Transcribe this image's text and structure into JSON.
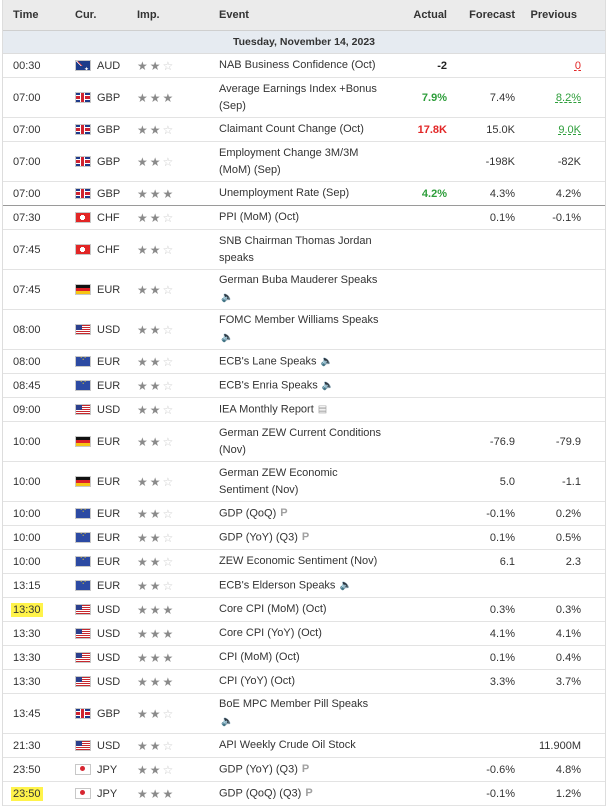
{
  "header": {
    "time": "Time",
    "currency": "Cur.",
    "importance": "Imp.",
    "event": "Event",
    "actual": "Actual",
    "forecast": "Forecast",
    "previous": "Previous"
  },
  "date_band": "Tuesday, November 14, 2023",
  "colors": {
    "positive": "#2e9e3b",
    "negative": "#e22626",
    "highlight": "#fff34a",
    "star_on": "#8b8b8b",
    "star_off": "#c9c9c9"
  },
  "rows": [
    {
      "time": "00:30",
      "cur": "AUD",
      "flag": "AUD",
      "imp": 2,
      "event": "NAB Business Confidence (Oct)",
      "icon": "",
      "actual": "-2",
      "actual_color": "black",
      "forecast": "",
      "previous": "0",
      "prev_color": "red",
      "h": 24
    },
    {
      "time": "07:00",
      "cur": "GBP",
      "flag": "GBP",
      "imp": 3,
      "event": "Average Earnings Index +Bonus (Sep)",
      "icon": "",
      "actual": "7.9%",
      "actual_color": "green",
      "forecast": "7.4%",
      "previous": "8.2%",
      "prev_color": "green",
      "h": 40
    },
    {
      "time": "07:00",
      "cur": "GBP",
      "flag": "GBP",
      "imp": 2,
      "event": "Claimant Count Change (Oct)",
      "icon": "",
      "actual": "17.8K",
      "actual_color": "red",
      "forecast": "15.0K",
      "previous": "9.0K",
      "prev_color": "green",
      "h": 24
    },
    {
      "time": "07:00",
      "cur": "GBP",
      "flag": "GBP",
      "imp": 2,
      "event": "Employment Change 3M/3M (MoM) (Sep)",
      "icon": "",
      "actual": "",
      "actual_color": "black",
      "forecast": "-198K",
      "previous": "-82K",
      "prev_color": "",
      "h": 40
    },
    {
      "time": "07:00",
      "cur": "GBP",
      "flag": "GBP",
      "imp": 3,
      "event": "Unemployment Rate (Sep)",
      "icon": "",
      "actual": "4.2%",
      "actual_color": "green",
      "forecast": "4.3%",
      "previous": "4.2%",
      "prev_color": "",
      "h": 24,
      "thick": true
    },
    {
      "time": "07:30",
      "cur": "CHF",
      "flag": "CHF",
      "imp": 2,
      "event": "PPI (MoM) (Oct)",
      "icon": "",
      "actual": "",
      "actual_color": "black",
      "forecast": "0.1%",
      "previous": "-0.1%",
      "prev_color": "",
      "h": 24
    },
    {
      "time": "07:45",
      "cur": "CHF",
      "flag": "CHF",
      "imp": 2,
      "event": "SNB Chairman Thomas Jordan speaks",
      "icon": "",
      "actual": "",
      "actual_color": "black",
      "forecast": "",
      "previous": "",
      "prev_color": "",
      "h": 40
    },
    {
      "time": "07:45",
      "cur": "EUR",
      "flag": "DE",
      "imp": 2,
      "event": "German Buba Mauderer Speaks",
      "icon": "speaker",
      "icon_newline": true,
      "actual": "",
      "actual_color": "black",
      "forecast": "",
      "previous": "",
      "prev_color": "",
      "h": 40
    },
    {
      "time": "08:00",
      "cur": "USD",
      "flag": "USD",
      "imp": 2,
      "event": "FOMC Member Williams Speaks",
      "icon": "speaker",
      "icon_newline": true,
      "actual": "",
      "actual_color": "black",
      "forecast": "",
      "previous": "",
      "prev_color": "",
      "h": 40
    },
    {
      "time": "08:00",
      "cur": "EUR",
      "flag": "EUR",
      "imp": 2,
      "event": "ECB's Lane Speaks",
      "icon": "speaker",
      "actual": "",
      "actual_color": "black",
      "forecast": "",
      "previous": "",
      "prev_color": "",
      "h": 24
    },
    {
      "time": "08:45",
      "cur": "EUR",
      "flag": "EUR",
      "imp": 2,
      "event": "ECB's Enria Speaks",
      "icon": "speaker",
      "actual": "",
      "actual_color": "black",
      "forecast": "",
      "previous": "",
      "prev_color": "",
      "h": 24
    },
    {
      "time": "09:00",
      "cur": "USD",
      "flag": "USD",
      "imp": 2,
      "event": "IEA Monthly Report",
      "icon": "report",
      "actual": "",
      "actual_color": "black",
      "forecast": "",
      "previous": "",
      "prev_color": "",
      "h": 24
    },
    {
      "time": "10:00",
      "cur": "EUR",
      "flag": "DE",
      "imp": 2,
      "event": "German ZEW Current Conditions (Nov)",
      "icon": "",
      "actual": "",
      "actual_color": "black",
      "forecast": "-76.9",
      "previous": "-79.9",
      "prev_color": "",
      "h": 40
    },
    {
      "time": "10:00",
      "cur": "EUR",
      "flag": "DE",
      "imp": 2,
      "event": "German ZEW Economic Sentiment (Nov)",
      "icon": "",
      "actual": "",
      "actual_color": "black",
      "forecast": "5.0",
      "previous": "-1.1",
      "prev_color": "",
      "h": 40
    },
    {
      "time": "10:00",
      "cur": "EUR",
      "flag": "EUR",
      "imp": 2,
      "event": "GDP (QoQ)",
      "icon": "prelim",
      "actual": "",
      "actual_color": "black",
      "forecast": "-0.1%",
      "previous": "0.2%",
      "prev_color": "",
      "h": 24
    },
    {
      "time": "10:00",
      "cur": "EUR",
      "flag": "EUR",
      "imp": 2,
      "event": "GDP (YoY) (Q3)",
      "icon": "prelim",
      "actual": "",
      "actual_color": "black",
      "forecast": "0.1%",
      "previous": "0.5%",
      "prev_color": "",
      "h": 24
    },
    {
      "time": "10:00",
      "cur": "EUR",
      "flag": "EUR",
      "imp": 2,
      "event": "ZEW Economic Sentiment (Nov)",
      "icon": "",
      "actual": "",
      "actual_color": "black",
      "forecast": "6.1",
      "previous": "2.3",
      "prev_color": "",
      "h": 24
    },
    {
      "time": "13:15",
      "cur": "EUR",
      "flag": "EUR",
      "imp": 2,
      "event": "ECB's Elderson Speaks",
      "icon": "speaker",
      "actual": "",
      "actual_color": "black",
      "forecast": "",
      "previous": "",
      "prev_color": "",
      "h": 24
    },
    {
      "time": "13:30",
      "cur": "USD",
      "flag": "USD",
      "imp": 3,
      "event": "Core CPI (MoM) (Oct)",
      "icon": "",
      "actual": "",
      "actual_color": "black",
      "forecast": "0.3%",
      "previous": "0.3%",
      "prev_color": "",
      "h": 24,
      "highlight": true
    },
    {
      "time": "13:30",
      "cur": "USD",
      "flag": "USD",
      "imp": 3,
      "event": "Core CPI (YoY) (Oct)",
      "icon": "",
      "actual": "",
      "actual_color": "black",
      "forecast": "4.1%",
      "previous": "4.1%",
      "prev_color": "",
      "h": 24
    },
    {
      "time": "13:30",
      "cur": "USD",
      "flag": "USD",
      "imp": 3,
      "event": "CPI (MoM) (Oct)",
      "icon": "",
      "actual": "",
      "actual_color": "black",
      "forecast": "0.1%",
      "previous": "0.4%",
      "prev_color": "",
      "h": 24
    },
    {
      "time": "13:30",
      "cur": "USD",
      "flag": "USD",
      "imp": 3,
      "event": "CPI (YoY) (Oct)",
      "icon": "",
      "actual": "",
      "actual_color": "black",
      "forecast": "3.3%",
      "previous": "3.7%",
      "prev_color": "",
      "h": 24
    },
    {
      "time": "13:45",
      "cur": "GBP",
      "flag": "GBP",
      "imp": 2,
      "event": "BoE MPC Member Pill Speaks",
      "icon": "speaker",
      "icon_newline": true,
      "actual": "",
      "actual_color": "black",
      "forecast": "",
      "previous": "",
      "prev_color": "",
      "h": 40
    },
    {
      "time": "21:30",
      "cur": "USD",
      "flag": "USD",
      "imp": 2,
      "event": "API Weekly Crude Oil Stock",
      "icon": "",
      "actual": "",
      "actual_color": "black",
      "forecast": "",
      "previous": "11.900M",
      "prev_color": "",
      "h": 24
    },
    {
      "time": "23:50",
      "cur": "JPY",
      "flag": "JPY",
      "imp": 2,
      "event": "GDP (YoY) (Q3)",
      "icon": "prelim",
      "actual": "",
      "actual_color": "black",
      "forecast": "-0.6%",
      "previous": "4.8%",
      "prev_color": "",
      "h": 24
    },
    {
      "time": "23:50",
      "cur": "JPY",
      "flag": "JPY",
      "imp": 3,
      "event": "GDP (QoQ) (Q3)",
      "icon": "prelim",
      "actual": "",
      "actual_color": "black",
      "forecast": "-0.1%",
      "previous": "1.2%",
      "prev_color": "",
      "h": 24,
      "highlight": true
    }
  ],
  "icon_glyphs": {
    "speaker": "🔈",
    "report": "▤",
    "prelim": "P"
  }
}
